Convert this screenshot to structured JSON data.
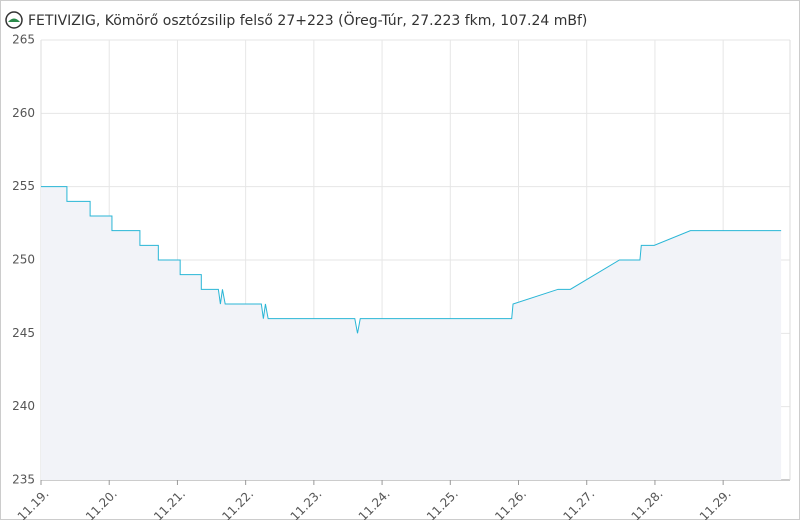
{
  "chart_data": {
    "type": "line",
    "title": "FETIVIZIG, Kömörő osztózsilip felső 27+223 (Öreg-Túr, 27.223 fkm, 107.24 mBf)",
    "x": [
      0,
      0.38,
      0.38,
      0.72,
      0.72,
      1.04,
      1.04,
      1.45,
      1.45,
      1.72,
      1.72,
      2.04,
      2.04,
      2.35,
      2.35,
      2.6,
      2.63,
      2.66,
      2.7,
      3.23,
      3.26,
      3.29,
      3.33,
      4.6,
      4.64,
      4.68,
      6.9,
      6.92,
      7.58,
      7.76,
      8.48,
      8.78,
      8.8,
      8.99,
      9.52,
      10.85
    ],
    "series": [
      {
        "color": "#29b6d6",
        "values": [
          255,
          255,
          254,
          254,
          253,
          253,
          252,
          252,
          251,
          251,
          250,
          250,
          249,
          249,
          248,
          248,
          247,
          248,
          247,
          247,
          246,
          247,
          246,
          246,
          245,
          246,
          246,
          247,
          248,
          248,
          250,
          250,
          251,
          251,
          252,
          252
        ]
      }
    ],
    "xlim": [
      0,
      10.98
    ],
    "xticks": [
      {
        "value": 0,
        "label": "11.19."
      },
      {
        "value": 1,
        "label": "11.20."
      },
      {
        "value": 2,
        "label": "11.21."
      },
      {
        "value": 3,
        "label": "11.22."
      },
      {
        "value": 4,
        "label": "11.23."
      },
      {
        "value": 5,
        "label": "11.24."
      },
      {
        "value": 6,
        "label": "11.25."
      },
      {
        "value": 7,
        "label": "11.26."
      },
      {
        "value": 8,
        "label": "11.27."
      },
      {
        "value": 9,
        "label": "11.28."
      },
      {
        "value": 10,
        "label": "11.29."
      }
    ],
    "ylim": [
      235,
      265
    ],
    "yticks": [
      235,
      240,
      245,
      250,
      255,
      260,
      265
    ],
    "grid": true,
    "area_color": "#f2f3f8"
  }
}
